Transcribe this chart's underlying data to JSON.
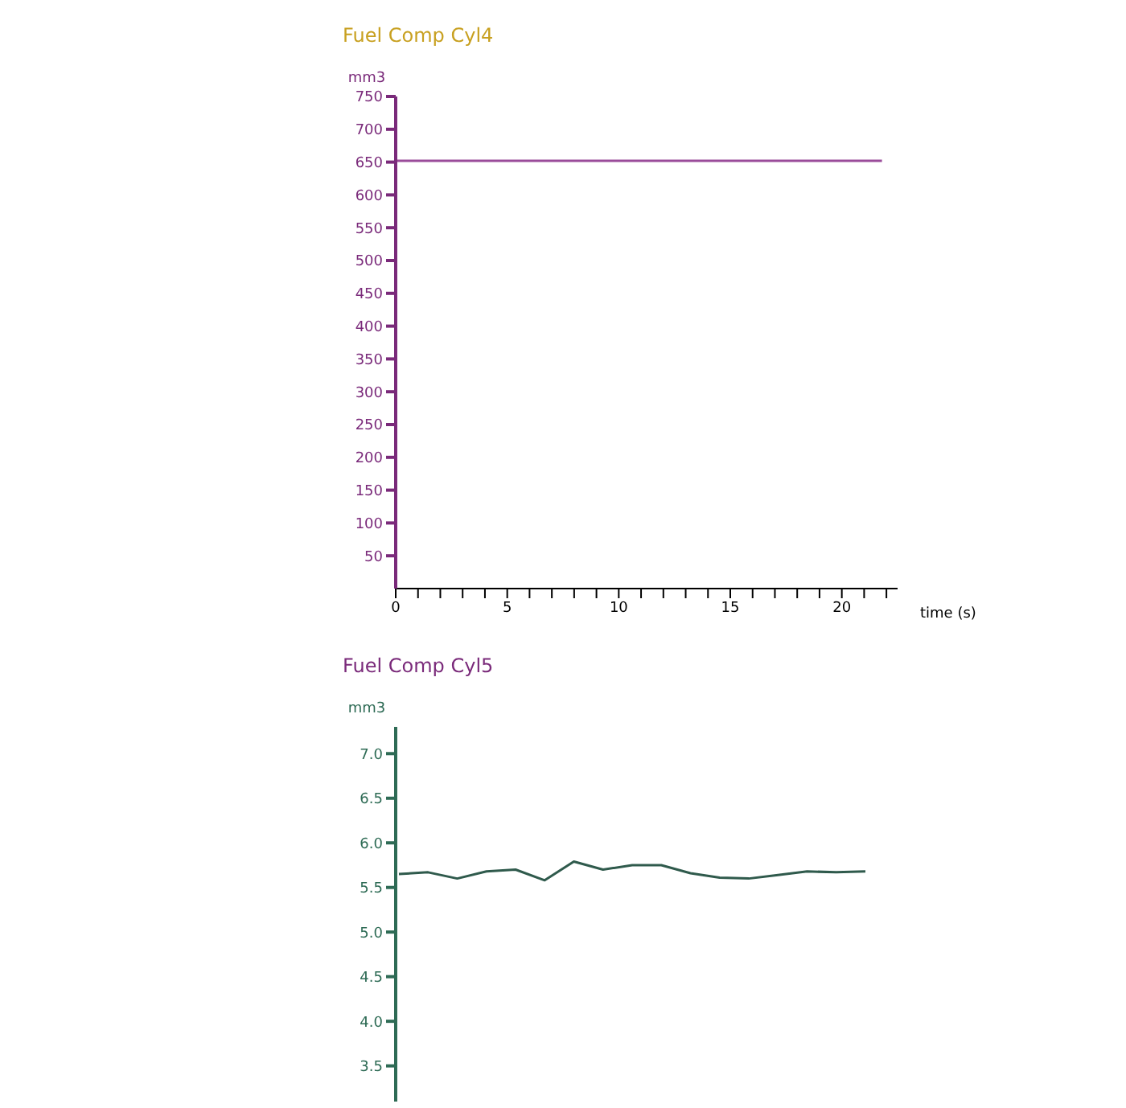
{
  "chart_data": [
    {
      "type": "line",
      "title": "Fuel Comp Cyl4",
      "ylabel": "mm3",
      "xlabel": "time (s)",
      "xlim": [
        0,
        22.5
      ],
      "ylim": [
        0,
        750
      ],
      "xticks": [
        0,
        {
          "value": 1,
          "label": null
        },
        {
          "value": 2,
          "label": null
        },
        {
          "value": 3,
          "label": null
        },
        {
          "value": 4,
          "label": null
        },
        5,
        {
          "value": 6,
          "label": null
        },
        {
          "value": 7,
          "label": null
        },
        {
          "value": 8,
          "label": null
        },
        {
          "value": 9,
          "label": null
        },
        10,
        {
          "value": 11,
          "label": null
        },
        {
          "value": 12,
          "label": null
        },
        {
          "value": 13,
          "label": null
        },
        {
          "value": 14,
          "label": null
        },
        15,
        {
          "value": 16,
          "label": null
        },
        {
          "value": 17,
          "label": null
        },
        {
          "value": 18,
          "label": null
        },
        {
          "value": 19,
          "label": null
        },
        20,
        {
          "value": 21,
          "label": null
        },
        {
          "value": 22,
          "label": null
        }
      ],
      "yticks": [
        50,
        100,
        150,
        200,
        250,
        300,
        350,
        400,
        450,
        500,
        550,
        600,
        650,
        700,
        750
      ],
      "grid": false,
      "legend": false,
      "marker": "none",
      "series": [
        {
          "color": "#9a4c9a",
          "x": [
            0,
            21.8
          ],
          "values": [
            652,
            652
          ]
        }
      ]
    },
    {
      "type": "line",
      "title": "Fuel Comp Cyl5",
      "ylabel": "mm3",
      "ylim": [
        3.1,
        7.3
      ],
      "tick_labels": "y",
      "yticks": [
        3.5,
        {
          "value": 4,
          "label": "4.0"
        },
        4.5,
        {
          "value": 5,
          "label": "5.0"
        },
        5.5,
        {
          "value": 6,
          "label": "6.0"
        },
        6.5,
        {
          "value": 7,
          "label": "7.0"
        }
      ],
      "grid": false,
      "legend": false,
      "marker": "none",
      "categories": [
        null,
        null,
        null,
        null,
        null,
        null,
        null,
        null,
        null,
        null,
        null,
        null,
        null,
        null,
        null,
        null,
        null
      ],
      "series": [
        {
          "color": "#2f5a4c",
          "values": [
            5.65,
            5.67,
            5.6,
            5.68,
            5.7,
            5.58,
            5.79,
            5.7,
            5.75,
            5.75,
            5.66,
            5.61,
            5.6,
            5.64,
            5.68,
            5.67,
            5.68
          ]
        }
      ]
    }
  ]
}
